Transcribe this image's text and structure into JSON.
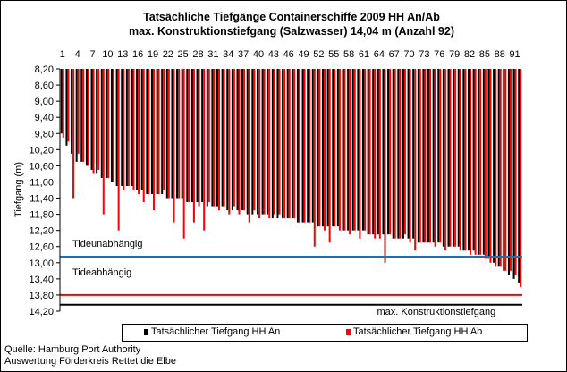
{
  "chart_data": {
    "type": "bar",
    "title": "Tatsächliche Tiefgänge Containerschiffe  2009 HH An/Ab",
    "subtitle": "max. Konstruktionstiefgang  (Salzwasser)  14,04 m (Anzahl 92)",
    "xlabel": "",
    "ylabel": "Tiefgang (m)",
    "y_inverted": true,
    "ylim": [
      8.2,
      14.2
    ],
    "y_ticks": [
      "8,20",
      "8,60",
      "9,00",
      "9,40",
      "9,80",
      "10,20",
      "10,60",
      "11,00",
      "11,40",
      "11,80",
      "12,20",
      "12,60",
      "13,00",
      "13,40",
      "13,80",
      "14,20"
    ],
    "x_ticks": [
      "1",
      "4",
      "7",
      "10",
      "13",
      "16",
      "19",
      "22",
      "25",
      "28",
      "31",
      "34",
      "37",
      "40",
      "43",
      "46",
      "49",
      "52",
      "55",
      "58",
      "61",
      "64",
      "67",
      "70",
      "73",
      "76",
      "79",
      "82",
      "85",
      "88",
      "91"
    ],
    "categories": [
      1,
      2,
      3,
      4,
      5,
      6,
      7,
      8,
      9,
      10,
      11,
      12,
      13,
      14,
      15,
      16,
      17,
      18,
      19,
      20,
      21,
      22,
      23,
      24,
      25,
      26,
      27,
      28,
      29,
      30,
      31,
      32,
      33,
      34,
      35,
      36,
      37,
      38,
      39,
      40,
      41,
      42,
      43,
      44,
      45,
      46,
      47,
      48,
      49,
      50,
      51,
      52,
      53,
      54,
      55,
      56,
      57,
      58,
      59,
      60,
      61,
      62,
      63,
      64,
      65,
      66,
      67,
      68,
      69,
      70,
      71,
      72,
      73,
      74,
      75,
      76,
      77,
      78,
      79,
      80,
      81,
      82,
      83,
      84,
      85,
      86,
      87,
      88,
      89,
      90,
      91,
      92
    ],
    "series": [
      {
        "name": "Tatsächlicher Tiefgang HH An",
        "color": "#000000",
        "values": [
          9.8,
          10.1,
          10.3,
          10.5,
          10.5,
          10.6,
          10.7,
          10.8,
          10.9,
          10.9,
          11.0,
          11.1,
          11.1,
          11.1,
          11.1,
          11.2,
          11.2,
          11.3,
          11.3,
          11.3,
          11.3,
          11.4,
          11.4,
          11.4,
          11.4,
          11.5,
          11.5,
          11.5,
          11.5,
          11.6,
          11.6,
          11.6,
          11.6,
          11.7,
          11.7,
          11.7,
          11.7,
          11.8,
          11.8,
          11.8,
          11.8,
          11.8,
          11.9,
          11.9,
          11.9,
          11.9,
          11.9,
          12.0,
          12.0,
          12.0,
          12.0,
          12.1,
          12.1,
          12.1,
          12.1,
          12.1,
          12.2,
          12.2,
          12.2,
          12.2,
          12.2,
          12.3,
          12.3,
          12.3,
          12.3,
          12.3,
          12.4,
          12.4,
          12.4,
          12.4,
          12.4,
          12.5,
          12.5,
          12.5,
          12.5,
          12.5,
          12.6,
          12.6,
          12.6,
          12.6,
          12.7,
          12.7,
          12.7,
          12.8,
          12.8,
          12.9,
          13.0,
          13.1,
          13.2,
          13.3,
          13.4,
          13.5
        ]
      },
      {
        "name": "Tatsächlicher Tiefgang HH Ab",
        "color": "#ff0000",
        "values": [
          9.9,
          10.0,
          11.4,
          10.3,
          10.5,
          10.6,
          10.8,
          10.7,
          11.8,
          10.9,
          11.0,
          12.2,
          11.2,
          11.1,
          11.2,
          11.3,
          11.5,
          11.3,
          11.7,
          11.3,
          11.2,
          11.4,
          12.0,
          11.4,
          12.4,
          11.5,
          12.0,
          11.6,
          12.2,
          11.5,
          11.6,
          11.7,
          11.6,
          11.8,
          11.6,
          11.8,
          11.7,
          12.0,
          11.7,
          11.9,
          11.8,
          11.9,
          11.8,
          11.8,
          11.9,
          11.9,
          11.9,
          12.0,
          12.0,
          12.0,
          12.6,
          12.1,
          12.2,
          12.5,
          12.1,
          12.2,
          12.2,
          12.3,
          12.2,
          12.4,
          12.2,
          12.3,
          12.4,
          12.4,
          13.0,
          12.3,
          12.4,
          12.4,
          12.3,
          12.5,
          12.7,
          12.5,
          12.5,
          12.5,
          12.6,
          12.5,
          12.7,
          12.6,
          12.6,
          12.7,
          12.7,
          12.8,
          12.8,
          12.8,
          12.9,
          13.0,
          13.1,
          13.1,
          13.2,
          13.2,
          13.3,
          13.6
        ]
      }
    ],
    "reference_lines": [
      {
        "label": "Tideunabhängig",
        "label_below": "Tideabhängig",
        "value": 12.85,
        "color": "#1f6fb4"
      },
      {
        "label": "",
        "value": 13.8,
        "color": "#ff0000"
      },
      {
        "label": "max. Konstruktionstiefgang",
        "value": 14.04,
        "color": "#000000"
      }
    ],
    "legend": {
      "placement": "bottom"
    },
    "grid": false
  },
  "source": {
    "line1": "Quelle: Hamburg Port Authority",
    "line2": "Auswertung Förderkreis Rettet die Elbe"
  }
}
